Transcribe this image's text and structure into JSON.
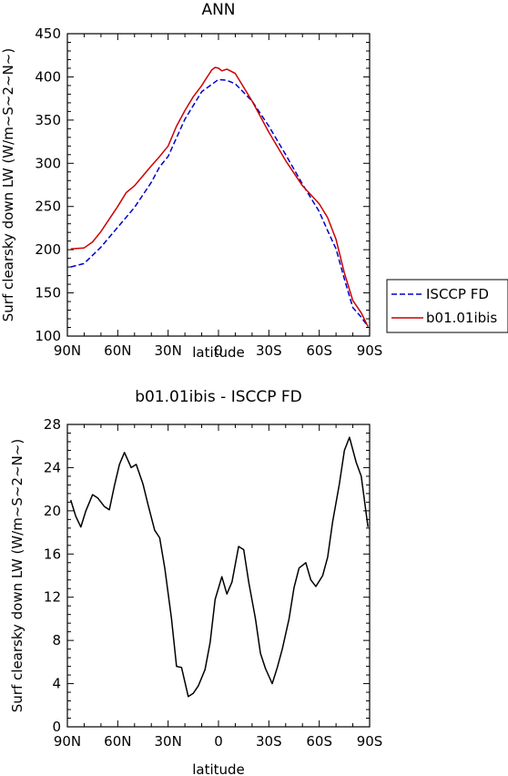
{
  "chart_data": [
    {
      "type": "line",
      "title": "ANN",
      "xlabel": "latitude",
      "ylabel": "Surf clearsky down LW (W/m~S~2~N~)",
      "xlim": [
        90,
        -90
      ],
      "ylim": [
        100,
        450
      ],
      "xticks": [
        90,
        60,
        30,
        0,
        -30,
        -60,
        -90
      ],
      "xtick_labels": [
        "90N",
        "60N",
        "30N",
        "0",
        "30S",
        "60S",
        "90S"
      ],
      "yticks": [
        100,
        150,
        200,
        250,
        300,
        350,
        400,
        450
      ],
      "ytick_labels": [
        "100",
        "150",
        "200",
        "250",
        "300",
        "350",
        "400",
        "450"
      ],
      "legend_position": "right",
      "series": [
        {
          "name": "ISCCP FD",
          "color": "#0000cc",
          "dash": "dashed",
          "x": [
            88,
            80,
            70,
            60,
            50,
            40,
            35,
            30,
            20,
            10,
            0,
            -5,
            -10,
            -20,
            -30,
            -40,
            -50,
            -55,
            -60,
            -65,
            -70,
            -75,
            -80,
            -85,
            -89
          ],
          "y": [
            180,
            184,
            203,
            226,
            249,
            278,
            296,
            308,
            351,
            383,
            397,
            396,
            392,
            372,
            343,
            310,
            276,
            260,
            244,
            222,
            201,
            166,
            133,
            122,
            111
          ]
        },
        {
          "name": "b01.01ibis",
          "color": "#cc0000",
          "dash": "solid",
          "x": [
            88,
            80,
            75,
            70,
            60,
            55,
            50,
            40,
            35,
            30,
            25,
            20,
            15,
            10,
            8,
            6,
            4,
            2,
            0,
            -2,
            -5,
            -10,
            -20,
            -30,
            -40,
            -50,
            -60,
            -65,
            -70,
            -75,
            -80,
            -85,
            -89
          ],
          "y": [
            201,
            202,
            209,
            221,
            250,
            266,
            274,
            297,
            308,
            320,
            343,
            361,
            377,
            390,
            396,
            402,
            408,
            411,
            410,
            407,
            409,
            404,
            372,
            336,
            303,
            274,
            253,
            237,
            212,
            173,
            141,
            127,
            111
          ]
        }
      ]
    },
    {
      "type": "line",
      "title": "b01.01ibis - ISCCP FD",
      "xlabel": "latitude",
      "ylabel": "Surf clearsky down LW (W/m~S~2~N~)",
      "xlim": [
        90,
        -90
      ],
      "ylim": [
        0,
        28
      ],
      "xticks": [
        90,
        60,
        30,
        0,
        -30,
        -60,
        -90
      ],
      "xtick_labels": [
        "90N",
        "60N",
        "30N",
        "0",
        "30S",
        "60S",
        "90S"
      ],
      "yticks": [
        0,
        4,
        8,
        12,
        16,
        20,
        24,
        28
      ],
      "ytick_labels": [
        "0",
        "4",
        "8",
        "12",
        "16",
        "20",
        "24",
        "28"
      ],
      "series": [
        {
          "color": "#000000",
          "dash": "solid",
          "x": [
            88,
            85,
            82,
            79,
            75,
            72,
            68,
            65,
            62,
            59,
            56,
            52,
            49,
            45,
            42,
            38,
            35,
            32,
            28,
            25,
            22,
            18,
            15,
            12,
            8,
            5,
            2,
            -2,
            -5,
            -8,
            -12,
            -15,
            -18,
            -22,
            -25,
            -28,
            -32,
            -35,
            -38,
            -42,
            -45,
            -48,
            -52,
            -55,
            -58,
            -62,
            -65,
            -68,
            -72,
            -75,
            -78,
            -82,
            -85,
            -89
          ],
          "y": [
            21.0,
            19.5,
            18.5,
            20.0,
            21.5,
            21.2,
            20.4,
            20.1,
            22.3,
            24.3,
            25.4,
            24.0,
            24.3,
            22.5,
            20.6,
            18.2,
            17.5,
            14.7,
            10.0,
            5.6,
            5.5,
            2.8,
            3.1,
            3.8,
            5.3,
            7.8,
            11.8,
            13.9,
            12.3,
            13.4,
            16.7,
            16.4,
            13.4,
            10.0,
            6.8,
            5.4,
            4.0,
            5.5,
            7.2,
            10.0,
            12.9,
            14.7,
            15.2,
            13.6,
            13.0,
            14.0,
            15.7,
            19.0,
            22.5,
            25.6,
            26.8,
            24.5,
            23.2,
            18.5
          ]
        }
      ]
    }
  ]
}
